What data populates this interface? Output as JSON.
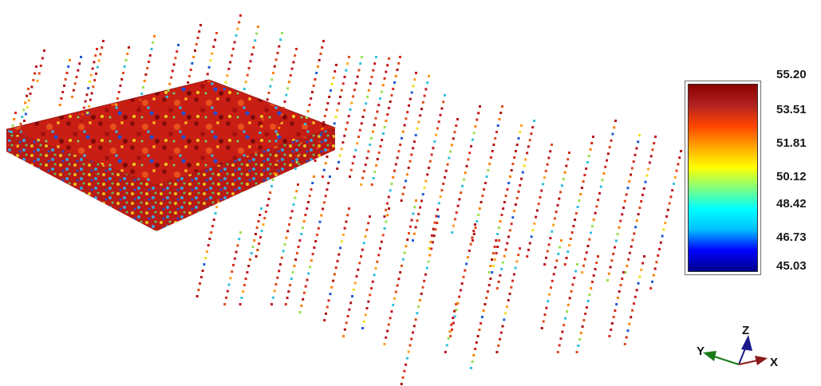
{
  "colorbar": {
    "labels": [
      "55.20",
      "53.51",
      "51.81",
      "50.12",
      "48.42",
      "46.73",
      "45.03"
    ],
    "min": 45.03,
    "max": 55.2,
    "colors": [
      "#00008b",
      "#0000ff",
      "#00bfff",
      "#00ffff",
      "#7fff7f",
      "#ffff00",
      "#ffa500",
      "#ff4500",
      "#b22222",
      "#8b0000"
    ]
  },
  "axes": {
    "x_label": "X",
    "y_label": "Y",
    "z_label": "Z",
    "x_color": "#8b1a1a",
    "y_color": "#1a7a1a",
    "z_color": "#1a1a8b"
  }
}
